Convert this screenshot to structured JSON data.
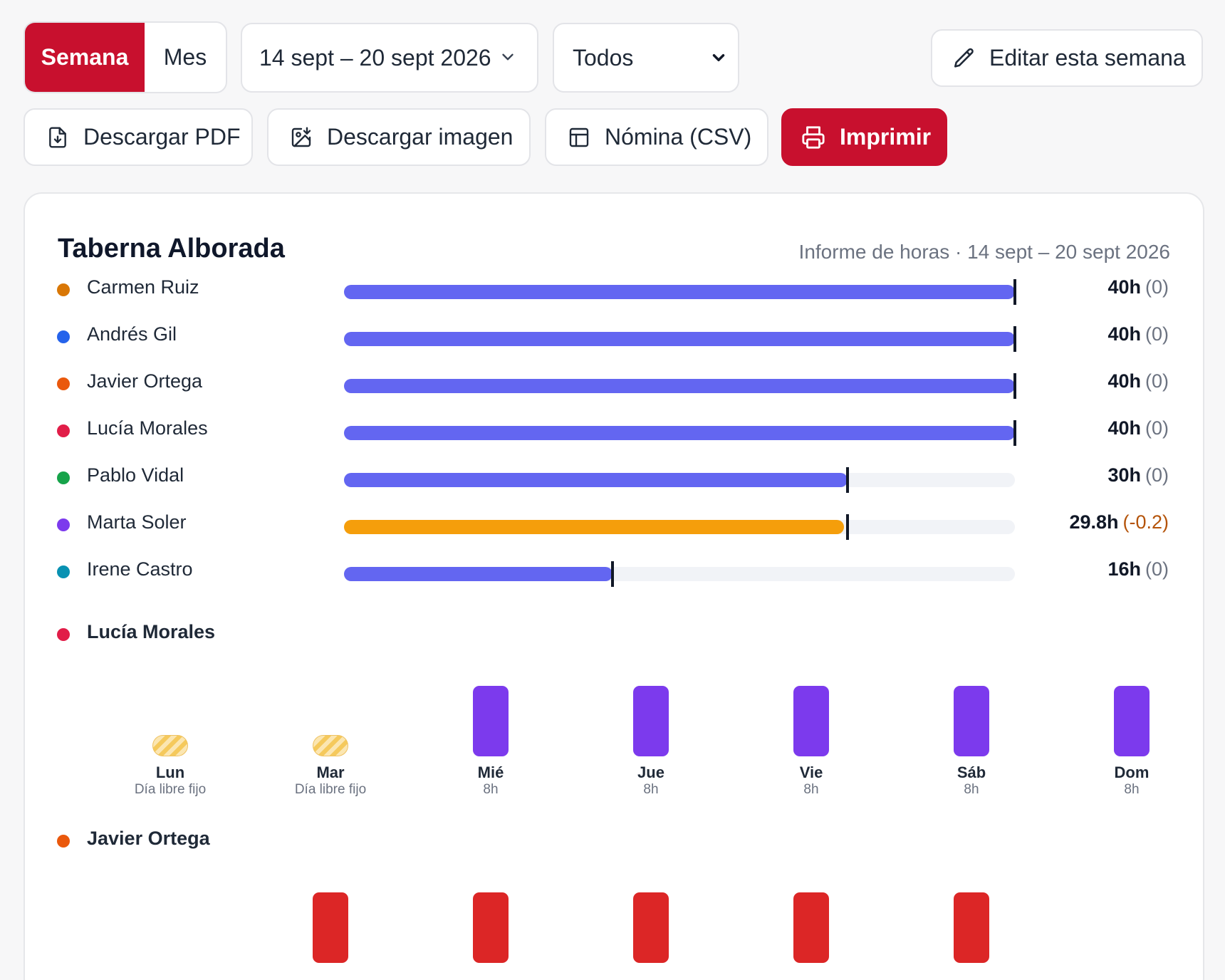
{
  "toolbar": {
    "view_toggle": {
      "week": "Semana",
      "month": "Mes",
      "selected": "Semana"
    },
    "date_range": "14 sept – 20 sept 2026",
    "filter": "Todos",
    "edit_week": "Editar esta semana",
    "download_pdf": "Descargar PDF",
    "download_image": "Descargar imagen",
    "payroll_csv": "Nómina (CSV)",
    "print": "Imprimir"
  },
  "report": {
    "title": "Taberna Alborada",
    "subtitle": "Informe de horas · 14 sept – 20 sept 2026",
    "max_hours": 40,
    "employees": [
      {
        "name": "Carmen Ruiz",
        "dot_color": "#d97706",
        "hours": 40,
        "target": 40,
        "hours_label": "40h",
        "delta_label": "(0)",
        "bar_color": "#6366f1"
      },
      {
        "name": "Andrés Gil",
        "dot_color": "#2563eb",
        "hours": 40,
        "target": 40,
        "hours_label": "40h",
        "delta_label": "(0)",
        "bar_color": "#6366f1"
      },
      {
        "name": "Javier Ortega",
        "dot_color": "#ea580c",
        "hours": 40,
        "target": 40,
        "hours_label": "40h",
        "delta_label": "(0)",
        "bar_color": "#6366f1"
      },
      {
        "name": "Lucía Morales",
        "dot_color": "#e11d48",
        "hours": 40,
        "target": 40,
        "hours_label": "40h",
        "delta_label": "(0)",
        "bar_color": "#6366f1"
      },
      {
        "name": "Pablo Vidal",
        "dot_color": "#16a34a",
        "hours": 30,
        "target": 30,
        "hours_label": "30h",
        "delta_label": "(0)",
        "bar_color": "#6366f1"
      },
      {
        "name": "Marta Soler",
        "dot_color": "#7c3aed",
        "hours": 29.8,
        "target": 30,
        "hours_label": "29.8h",
        "delta_label": "(-0.2)",
        "bar_color": "#f59e0b",
        "negative": true
      },
      {
        "name": "Irene Castro",
        "dot_color": "#0891b2",
        "hours": 16,
        "target": 16,
        "hours_label": "16h",
        "delta_label": "(0)",
        "bar_color": "#6366f1"
      }
    ]
  },
  "details": [
    {
      "name": "Lucía Morales",
      "dot_color": "#e11d48",
      "bar_color": "#7c3aed",
      "days": [
        {
          "day": "Lun",
          "note": "Día libre fijo",
          "hours": 0,
          "free": true
        },
        {
          "day": "Mar",
          "note": "Día libre fijo",
          "hours": 0,
          "free": true
        },
        {
          "day": "Mié",
          "note": "8h",
          "hours": 8
        },
        {
          "day": "Jue",
          "note": "8h",
          "hours": 8
        },
        {
          "day": "Vie",
          "note": "8h",
          "hours": 8
        },
        {
          "day": "Sáb",
          "note": "8h",
          "hours": 8
        },
        {
          "day": "Dom",
          "note": "8h",
          "hours": 8
        }
      ]
    },
    {
      "name": "Javier Ortega",
      "dot_color": "#ea580c",
      "bar_color": "#dc2626",
      "days": [
        {
          "hours": 0
        },
        {
          "hours": 8
        },
        {
          "hours": 8
        },
        {
          "hours": 8
        },
        {
          "hours": 8
        },
        {
          "hours": 8
        },
        {
          "hours": 0
        }
      ]
    }
  ]
}
